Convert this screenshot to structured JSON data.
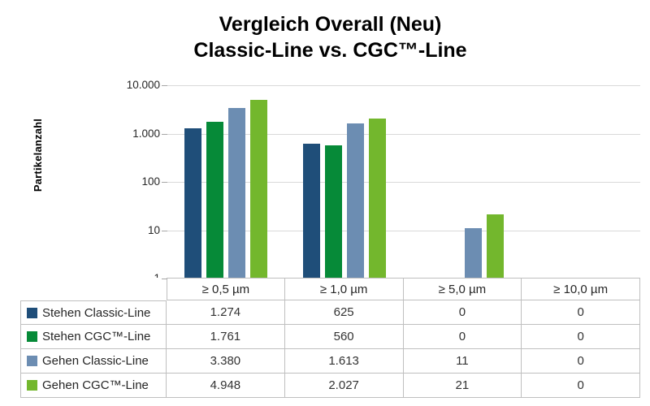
{
  "title": {
    "line1": "Vergleich Overall (Neu)",
    "line2": "Classic-Line vs. CGC™-Line"
  },
  "chart_data": {
    "type": "bar",
    "title": "Vergleich Overall (Neu) Classic-Line vs. CGC™-Line",
    "ylabel": "Partikelanzahl",
    "xlabel": "",
    "y_scale": "log",
    "ylim": [
      1,
      10000
    ],
    "grid": true,
    "y_ticks": [
      {
        "value": 10000,
        "label": "10.000"
      },
      {
        "value": 1000,
        "label": "1.000"
      },
      {
        "value": 100,
        "label": "100"
      },
      {
        "value": 10,
        "label": "10"
      },
      {
        "value": 1,
        "label": "1"
      }
    ],
    "categories": [
      "≥ 0,5 µm",
      "≥ 1,0 µm",
      "≥ 5,0 µm",
      "≥ 10,0 µm"
    ],
    "series": [
      {
        "name": "Stehen Classic-Line",
        "color": "#1F4E79",
        "values": [
          1274,
          625,
          0,
          0
        ]
      },
      {
        "name": "Stehen CGC™-Line",
        "color": "#068A38",
        "values": [
          1761,
          560,
          0,
          0
        ]
      },
      {
        "name": "Gehen Classic-Line",
        "color": "#6C8DB2",
        "values": [
          3380,
          1613,
          11,
          0
        ]
      },
      {
        "name": "Gehen CGC™-Line",
        "color": "#73B72D",
        "values": [
          4948,
          2027,
          21,
          0
        ]
      }
    ],
    "legend_position": "table-left"
  },
  "table": {
    "header": [
      "≥ 0,5 µm",
      "≥ 1,0 µm",
      "≥ 5,0 µm",
      "≥ 10,0 µm"
    ],
    "rows": [
      {
        "label": "Stehen Classic-Line",
        "swatch": "#1F4E79",
        "cells": [
          "1.274",
          "625",
          "0",
          "0"
        ]
      },
      {
        "label": "Stehen CGC™-Line",
        "swatch": "#068A38",
        "cells": [
          "1.761",
          "560",
          "0",
          "0"
        ]
      },
      {
        "label": "Gehen Classic-Line",
        "swatch": "#6C8DB2",
        "cells": [
          "3.380",
          "1.613",
          "11",
          "0"
        ]
      },
      {
        "label": "Gehen CGC™-Line",
        "swatch": "#73B72D",
        "cells": [
          "4.948",
          "2.027",
          "21",
          "0"
        ]
      }
    ]
  },
  "colors": {
    "gridline": "#D9D9D9",
    "table_border": "#BFBFBF",
    "tick": "#A6A6A6",
    "text": "#262626"
  }
}
